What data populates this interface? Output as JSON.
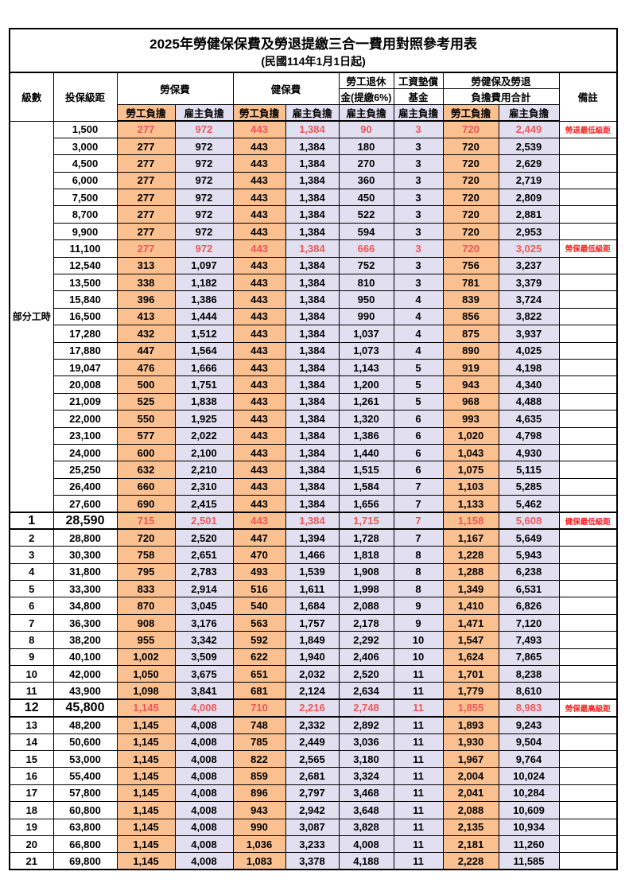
{
  "title": "2025年勞健保保費及勞退提繳三合一費用對照參考用表",
  "subtitle": "(民國114年1月1日起)",
  "header": {
    "level": "級數",
    "bracket": "投保級距",
    "labor_insurance": "勞保費",
    "health_insurance": "健保費",
    "pension_line1": "勞工退休",
    "pension_line2": "金(提繳6%)",
    "wage_fund_line1": "工資墊償",
    "wage_fund_line2": "基金",
    "total_line1": "勞健保及勞退",
    "total_line2": "負擔費用合計",
    "employee": "勞工負擔",
    "employer": "雇主負擔",
    "remark": "備註"
  },
  "part_time_label": "部分工時",
  "part_time_rowspan": 23,
  "colors": {
    "employee_bg": "#FAC090",
    "employer_bg": "#E1DFF0",
    "highlight_text": "#EE5858",
    "remark_text": "#FF2020",
    "grid": "#000000"
  },
  "rows": [
    {
      "bracket": "1,500",
      "labor_emp": "277",
      "labor_er": "972",
      "health_emp": "443",
      "health_er": "1,384",
      "pension_er": "90",
      "fund_er": "3",
      "total_emp": "720",
      "total_er": "2,449",
      "remark": "勞退最低級距",
      "highlight": true
    },
    {
      "bracket": "3,000",
      "labor_emp": "277",
      "labor_er": "972",
      "health_emp": "443",
      "health_er": "1,384",
      "pension_er": "180",
      "fund_er": "3",
      "total_emp": "720",
      "total_er": "2,539",
      "remark": ""
    },
    {
      "bracket": "4,500",
      "labor_emp": "277",
      "labor_er": "972",
      "health_emp": "443",
      "health_er": "1,384",
      "pension_er": "270",
      "fund_er": "3",
      "total_emp": "720",
      "total_er": "2,629",
      "remark": ""
    },
    {
      "bracket": "6,000",
      "labor_emp": "277",
      "labor_er": "972",
      "health_emp": "443",
      "health_er": "1,384",
      "pension_er": "360",
      "fund_er": "3",
      "total_emp": "720",
      "total_er": "2,719",
      "remark": ""
    },
    {
      "bracket": "7,500",
      "labor_emp": "277",
      "labor_er": "972",
      "health_emp": "443",
      "health_er": "1,384",
      "pension_er": "450",
      "fund_er": "3",
      "total_emp": "720",
      "total_er": "2,809",
      "remark": ""
    },
    {
      "bracket": "8,700",
      "labor_emp": "277",
      "labor_er": "972",
      "health_emp": "443",
      "health_er": "1,384",
      "pension_er": "522",
      "fund_er": "3",
      "total_emp": "720",
      "total_er": "2,881",
      "remark": ""
    },
    {
      "bracket": "9,900",
      "labor_emp": "277",
      "labor_er": "972",
      "health_emp": "443",
      "health_er": "1,384",
      "pension_er": "594",
      "fund_er": "3",
      "total_emp": "720",
      "total_er": "2,953",
      "remark": ""
    },
    {
      "bracket": "11,100",
      "labor_emp": "277",
      "labor_er": "972",
      "health_emp": "443",
      "health_er": "1,384",
      "pension_er": "666",
      "fund_er": "3",
      "total_emp": "720",
      "total_er": "3,025",
      "remark": "勞保最低級距",
      "highlight": true
    },
    {
      "bracket": "12,540",
      "labor_emp": "313",
      "labor_er": "1,097",
      "health_emp": "443",
      "health_er": "1,384",
      "pension_er": "752",
      "fund_er": "3",
      "total_emp": "756",
      "total_er": "3,237",
      "remark": ""
    },
    {
      "bracket": "13,500",
      "labor_emp": "338",
      "labor_er": "1,182",
      "health_emp": "443",
      "health_er": "1,384",
      "pension_er": "810",
      "fund_er": "3",
      "total_emp": "781",
      "total_er": "3,379",
      "remark": ""
    },
    {
      "bracket": "15,840",
      "labor_emp": "396",
      "labor_er": "1,386",
      "health_emp": "443",
      "health_er": "1,384",
      "pension_er": "950",
      "fund_er": "4",
      "total_emp": "839",
      "total_er": "3,724",
      "remark": ""
    },
    {
      "bracket": "16,500",
      "labor_emp": "413",
      "labor_er": "1,444",
      "health_emp": "443",
      "health_er": "1,384",
      "pension_er": "990",
      "fund_er": "4",
      "total_emp": "856",
      "total_er": "3,822",
      "remark": ""
    },
    {
      "bracket": "17,280",
      "labor_emp": "432",
      "labor_er": "1,512",
      "health_emp": "443",
      "health_er": "1,384",
      "pension_er": "1,037",
      "fund_er": "4",
      "total_emp": "875",
      "total_er": "3,937",
      "remark": ""
    },
    {
      "bracket": "17,880",
      "labor_emp": "447",
      "labor_er": "1,564",
      "health_emp": "443",
      "health_er": "1,384",
      "pension_er": "1,073",
      "fund_er": "4",
      "total_emp": "890",
      "total_er": "4,025",
      "remark": ""
    },
    {
      "bracket": "19,047",
      "labor_emp": "476",
      "labor_er": "1,666",
      "health_emp": "443",
      "health_er": "1,384",
      "pension_er": "1,143",
      "fund_er": "5",
      "total_emp": "919",
      "total_er": "4,198",
      "remark": ""
    },
    {
      "bracket": "20,008",
      "labor_emp": "500",
      "labor_er": "1,751",
      "health_emp": "443",
      "health_er": "1,384",
      "pension_er": "1,200",
      "fund_er": "5",
      "total_emp": "943",
      "total_er": "4,340",
      "remark": ""
    },
    {
      "bracket": "21,009",
      "labor_emp": "525",
      "labor_er": "1,838",
      "health_emp": "443",
      "health_er": "1,384",
      "pension_er": "1,261",
      "fund_er": "5",
      "total_emp": "968",
      "total_er": "4,488",
      "remark": ""
    },
    {
      "bracket": "22,000",
      "labor_emp": "550",
      "labor_er": "1,925",
      "health_emp": "443",
      "health_er": "1,384",
      "pension_er": "1,320",
      "fund_er": "6",
      "total_emp": "993",
      "total_er": "4,635",
      "remark": ""
    },
    {
      "bracket": "23,100",
      "labor_emp": "577",
      "labor_er": "2,022",
      "health_emp": "443",
      "health_er": "1,384",
      "pension_er": "1,386",
      "fund_er": "6",
      "total_emp": "1,020",
      "total_er": "4,798",
      "remark": ""
    },
    {
      "bracket": "24,000",
      "labor_emp": "600",
      "labor_er": "2,100",
      "health_emp": "443",
      "health_er": "1,384",
      "pension_er": "1,440",
      "fund_er": "6",
      "total_emp": "1,043",
      "total_er": "4,930",
      "remark": ""
    },
    {
      "bracket": "25,250",
      "labor_emp": "632",
      "labor_er": "2,210",
      "health_emp": "443",
      "health_er": "1,384",
      "pension_er": "1,515",
      "fund_er": "6",
      "total_emp": "1,075",
      "total_er": "5,115",
      "remark": ""
    },
    {
      "bracket": "26,400",
      "labor_emp": "660",
      "labor_er": "2,310",
      "health_emp": "443",
      "health_er": "1,384",
      "pension_er": "1,584",
      "fund_er": "7",
      "total_emp": "1,103",
      "total_er": "5,285",
      "remark": ""
    },
    {
      "bracket": "27,600",
      "labor_emp": "690",
      "labor_er": "2,415",
      "health_emp": "443",
      "health_er": "1,384",
      "pension_er": "1,656",
      "fund_er": "7",
      "total_emp": "1,133",
      "total_er": "5,462",
      "remark": ""
    },
    {
      "level": "1",
      "bracket": "28,590",
      "labor_emp": "715",
      "labor_er": "2,501",
      "health_emp": "443",
      "health_er": "1,384",
      "pension_er": "1,715",
      "fund_er": "7",
      "total_emp": "1,158",
      "total_er": "5,608",
      "remark": "健保最低級距",
      "highlight": true,
      "big": true,
      "thick": true
    },
    {
      "level": "2",
      "bracket": "28,800",
      "labor_emp": "720",
      "labor_er": "2,520",
      "health_emp": "447",
      "health_er": "1,394",
      "pension_er": "1,728",
      "fund_er": "7",
      "total_emp": "1,167",
      "total_er": "5,649",
      "remark": ""
    },
    {
      "level": "3",
      "bracket": "30,300",
      "labor_emp": "758",
      "labor_er": "2,651",
      "health_emp": "470",
      "health_er": "1,466",
      "pension_er": "1,818",
      "fund_er": "8",
      "total_emp": "1,228",
      "total_er": "5,943",
      "remark": ""
    },
    {
      "level": "4",
      "bracket": "31,800",
      "labor_emp": "795",
      "labor_er": "2,783",
      "health_emp": "493",
      "health_er": "1,539",
      "pension_er": "1,908",
      "fund_er": "8",
      "total_emp": "1,288",
      "total_er": "6,238",
      "remark": ""
    },
    {
      "level": "5",
      "bracket": "33,300",
      "labor_emp": "833",
      "labor_er": "2,914",
      "health_emp": "516",
      "health_er": "1,611",
      "pension_er": "1,998",
      "fund_er": "8",
      "total_emp": "1,349",
      "total_er": "6,531",
      "remark": ""
    },
    {
      "level": "6",
      "bracket": "34,800",
      "labor_emp": "870",
      "labor_er": "3,045",
      "health_emp": "540",
      "health_er": "1,684",
      "pension_er": "2,088",
      "fund_er": "9",
      "total_emp": "1,410",
      "total_er": "6,826",
      "remark": ""
    },
    {
      "level": "7",
      "bracket": "36,300",
      "labor_emp": "908",
      "labor_er": "3,176",
      "health_emp": "563",
      "health_er": "1,757",
      "pension_er": "2,178",
      "fund_er": "9",
      "total_emp": "1,471",
      "total_er": "7,120",
      "remark": ""
    },
    {
      "level": "8",
      "bracket": "38,200",
      "labor_emp": "955",
      "labor_er": "3,342",
      "health_emp": "592",
      "health_er": "1,849",
      "pension_er": "2,292",
      "fund_er": "10",
      "total_emp": "1,547",
      "total_er": "7,493",
      "remark": ""
    },
    {
      "level": "9",
      "bracket": "40,100",
      "labor_emp": "1,002",
      "labor_er": "3,509",
      "health_emp": "622",
      "health_er": "1,940",
      "pension_er": "2,406",
      "fund_er": "10",
      "total_emp": "1,624",
      "total_er": "7,865",
      "remark": ""
    },
    {
      "level": "10",
      "bracket": "42,000",
      "labor_emp": "1,050",
      "labor_er": "3,675",
      "health_emp": "651",
      "health_er": "2,032",
      "pension_er": "2,520",
      "fund_er": "11",
      "total_emp": "1,701",
      "total_er": "8,238",
      "remark": ""
    },
    {
      "level": "11",
      "bracket": "43,900",
      "labor_emp": "1,098",
      "labor_er": "3,841",
      "health_emp": "681",
      "health_er": "2,124",
      "pension_er": "2,634",
      "fund_er": "11",
      "total_emp": "1,779",
      "total_er": "8,610",
      "remark": ""
    },
    {
      "level": "12",
      "bracket": "45,800",
      "labor_emp": "1,145",
      "labor_er": "4,008",
      "health_emp": "710",
      "health_er": "2,216",
      "pension_er": "2,748",
      "fund_er": "11",
      "total_emp": "1,855",
      "total_er": "8,983",
      "remark": "勞保最高級距",
      "highlight": true,
      "big": true,
      "thick": true
    },
    {
      "level": "13",
      "bracket": "48,200",
      "labor_emp": "1,145",
      "labor_er": "4,008",
      "health_emp": "748",
      "health_er": "2,332",
      "pension_er": "2,892",
      "fund_er": "11",
      "total_emp": "1,893",
      "total_er": "9,243",
      "remark": ""
    },
    {
      "level": "14",
      "bracket": "50,600",
      "labor_emp": "1,145",
      "labor_er": "4,008",
      "health_emp": "785",
      "health_er": "2,449",
      "pension_er": "3,036",
      "fund_er": "11",
      "total_emp": "1,930",
      "total_er": "9,504",
      "remark": ""
    },
    {
      "level": "15",
      "bracket": "53,000",
      "labor_emp": "1,145",
      "labor_er": "4,008",
      "health_emp": "822",
      "health_er": "2,565",
      "pension_er": "3,180",
      "fund_er": "11",
      "total_emp": "1,967",
      "total_er": "9,764",
      "remark": ""
    },
    {
      "level": "16",
      "bracket": "55,400",
      "labor_emp": "1,145",
      "labor_er": "4,008",
      "health_emp": "859",
      "health_er": "2,681",
      "pension_er": "3,324",
      "fund_er": "11",
      "total_emp": "2,004",
      "total_er": "10,024",
      "remark": ""
    },
    {
      "level": "17",
      "bracket": "57,800",
      "labor_emp": "1,145",
      "labor_er": "4,008",
      "health_emp": "896",
      "health_er": "2,797",
      "pension_er": "3,468",
      "fund_er": "11",
      "total_emp": "2,041",
      "total_er": "10,284",
      "remark": ""
    },
    {
      "level": "18",
      "bracket": "60,800",
      "labor_emp": "1,145",
      "labor_er": "4,008",
      "health_emp": "943",
      "health_er": "2,942",
      "pension_er": "3,648",
      "fund_er": "11",
      "total_emp": "2,088",
      "total_er": "10,609",
      "remark": ""
    },
    {
      "level": "19",
      "bracket": "63,800",
      "labor_emp": "1,145",
      "labor_er": "4,008",
      "health_emp": "990",
      "health_er": "3,087",
      "pension_er": "3,828",
      "fund_er": "11",
      "total_emp": "2,135",
      "total_er": "10,934",
      "remark": ""
    },
    {
      "level": "20",
      "bracket": "66,800",
      "labor_emp": "1,145",
      "labor_er": "4,008",
      "health_emp": "1,036",
      "health_er": "3,233",
      "pension_er": "4,008",
      "fund_er": "11",
      "total_emp": "2,181",
      "total_er": "11,260",
      "remark": ""
    },
    {
      "level": "21",
      "bracket": "69,800",
      "labor_emp": "1,145",
      "labor_er": "4,008",
      "health_emp": "1,083",
      "health_er": "3,378",
      "pension_er": "4,188",
      "fund_er": "11",
      "total_emp": "2,228",
      "total_er": "11,585",
      "remark": ""
    }
  ]
}
